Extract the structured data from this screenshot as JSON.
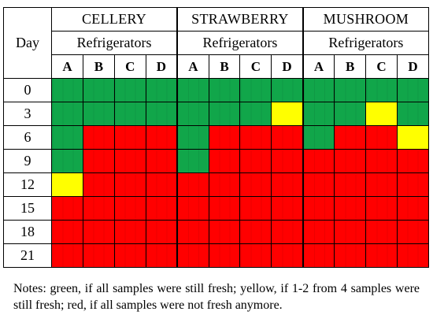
{
  "table": {
    "day_header": "Day",
    "products": [
      {
        "name": "CELLERY",
        "subheader": "Refrigerators"
      },
      {
        "name": "STRAWBERRY",
        "subheader": "Refrigerators"
      },
      {
        "name": "MUSHROOM",
        "subheader": "Refrigerators"
      }
    ],
    "refrigerator_letters": [
      "A",
      "B",
      "C",
      "D"
    ],
    "colors": {
      "green": "#11a64a",
      "yellow": "#ffff00",
      "red": "#ff0000"
    },
    "rows": [
      {
        "day": "0",
        "status": [
          "green",
          "green",
          "green",
          "green",
          "green",
          "green",
          "green",
          "green",
          "green",
          "green",
          "green",
          "green"
        ]
      },
      {
        "day": "3",
        "status": [
          "green",
          "green",
          "green",
          "green",
          "green",
          "green",
          "green",
          "yellow",
          "green",
          "green",
          "yellow",
          "green"
        ]
      },
      {
        "day": "6",
        "status": [
          "green",
          "red",
          "red",
          "red",
          "green",
          "red",
          "red",
          "red",
          "green",
          "red",
          "red",
          "yellow"
        ]
      },
      {
        "day": "9",
        "status": [
          "green",
          "red",
          "red",
          "red",
          "green",
          "red",
          "red",
          "red",
          "red",
          "red",
          "red",
          "red"
        ]
      },
      {
        "day": "12",
        "status": [
          "yellow",
          "red",
          "red",
          "red",
          "red",
          "red",
          "red",
          "red",
          "red",
          "red",
          "red",
          "red"
        ]
      },
      {
        "day": "15",
        "status": [
          "red",
          "red",
          "red",
          "red",
          "red",
          "red",
          "red",
          "red",
          "red",
          "red",
          "red",
          "red"
        ]
      },
      {
        "day": "18",
        "status": [
          "red",
          "red",
          "red",
          "red",
          "red",
          "red",
          "red",
          "red",
          "red",
          "red",
          "red",
          "red"
        ]
      },
      {
        "day": "21",
        "status": [
          "red",
          "red",
          "red",
          "red",
          "red",
          "red",
          "red",
          "red",
          "red",
          "red",
          "red",
          "red"
        ]
      }
    ]
  },
  "notes": "Notes: green, if all samples were still fresh; yellow, if 1-2 from 4 samples were still fresh; red, if all samples were not fresh anymore."
}
